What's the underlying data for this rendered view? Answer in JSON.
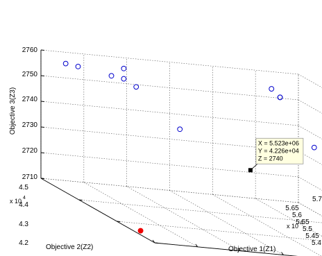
{
  "chart_data": {
    "type": "scatter3d",
    "xlabel": "Objective 1(Z1)",
    "ylabel": "Objective 2(Z2)",
    "zlabel": "Objective 3(Z3)",
    "x_multiplier": "x 10",
    "x_exponent": "6",
    "y_multiplier": "x 10",
    "y_exponent": "4",
    "x_ticks": [
      "5.4",
      "5.45",
      "5.5",
      "5.55",
      "5.6",
      "5.65",
      "5.7"
    ],
    "y_ticks": [
      "4.2",
      "4.3",
      "4.4",
      "4.5"
    ],
    "z_ticks": [
      "2710",
      "2720",
      "2730",
      "2740",
      "2750",
      "2760"
    ],
    "xlim": [
      5.4,
      5.7
    ],
    "ylim": [
      4.2,
      4.5
    ],
    "zlim": [
      2710,
      2760
    ],
    "grid": true,
    "marker_color": "#0000cc",
    "highlight_color": "#ee0000",
    "series": [
      {
        "marker": "open-circle",
        "points": [
          {
            "x": 5.42,
            "y": 4.48,
            "z": 2757
          },
          {
            "x": 5.43,
            "y": 4.47,
            "z": 2757
          },
          {
            "x": 5.47,
            "y": 4.44,
            "z": 2760
          },
          {
            "x": 5.46,
            "y": 4.45,
            "z": 2756
          },
          {
            "x": 5.47,
            "y": 4.44,
            "z": 2756
          },
          {
            "x": 5.48,
            "y": 4.43,
            "z": 2754
          },
          {
            "x": 5.5,
            "y": 4.36,
            "z": 2744
          },
          {
            "x": 5.62,
            "y": 4.39,
            "z": 2761
          },
          {
            "x": 5.63,
            "y": 4.39,
            "z": 2758
          },
          {
            "x": 5.63,
            "y": 4.39,
            "z": 2758
          },
          {
            "x": 5.63,
            "y": 4.3,
            "z": 2746
          },
          {
            "x": 5.68,
            "y": 4.29,
            "z": 2748
          },
          {
            "x": 5.67,
            "y": 4.28,
            "z": 2745
          }
        ]
      },
      {
        "marker": "filled-dot",
        "points": [
          {
            "x": 5.41,
            "y": 4.26,
            "z": 2710
          }
        ]
      }
    ],
    "datatip": {
      "point": {
        "x": 5.523,
        "y": 4.226,
        "z": 2740
      },
      "lines": [
        "X = 5.523e+06",
        "Y = 4.226e+04",
        "Z = 2740"
      ]
    }
  }
}
